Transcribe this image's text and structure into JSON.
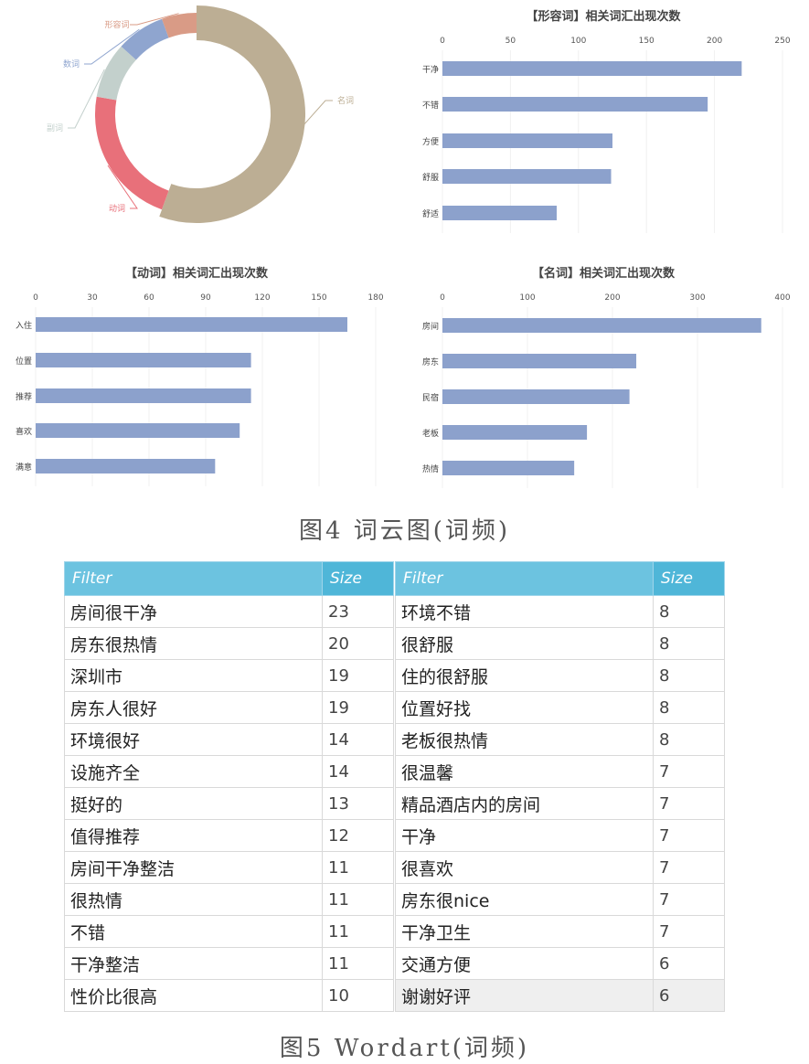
{
  "chart_data": [
    {
      "type": "pie",
      "donut": true,
      "slices": [
        {
          "label": "名词",
          "value": 50,
          "color": "#bcae94"
        },
        {
          "label": "动词",
          "value": 20,
          "color": "#e8707a"
        },
        {
          "label": "副词",
          "value": 8,
          "color": "#c3d0cc"
        },
        {
          "label": "数词",
          "value": 7,
          "color": "#8fa5cf"
        },
        {
          "label": "形容词",
          "value": 5,
          "color": "#d99b86"
        }
      ]
    },
    {
      "type": "bar",
      "orientation": "horizontal",
      "title": "【形容词】相关词汇出现次数",
      "categories": [
        "干净",
        "不错",
        "方便",
        "舒服",
        "舒适"
      ],
      "values": [
        220,
        195,
        125,
        124,
        84
      ],
      "xticks": [
        0,
        50,
        100,
        150,
        200,
        250
      ],
      "xlim": [
        0,
        250
      ],
      "color": "#8ca1cc"
    },
    {
      "type": "bar",
      "orientation": "horizontal",
      "title": "【动词】相关词汇出现次数",
      "categories": [
        "入住",
        "位置",
        "推荐",
        "喜欢",
        "满意"
      ],
      "values": [
        165,
        114,
        114,
        108,
        95
      ],
      "xticks": [
        0,
        30,
        60,
        90,
        120,
        150,
        180
      ],
      "xlim": [
        0,
        180
      ],
      "color": "#8ca1cc"
    },
    {
      "type": "bar",
      "orientation": "horizontal",
      "title": "【名词】相关词汇出现次数",
      "categories": [
        "房间",
        "房东",
        "民宿",
        "老板",
        "热情"
      ],
      "values": [
        375,
        228,
        220,
        170,
        155
      ],
      "xticks": [
        0,
        100,
        200,
        300,
        400
      ],
      "xlim": [
        0,
        400
      ],
      "color": "#8ca1cc"
    }
  ],
  "captions": {
    "fig4": "图4 词云图(词频)",
    "fig5": "图5 Wordart(词频)"
  },
  "table_left": {
    "headers": [
      "Filter",
      "Size"
    ],
    "rows": [
      [
        "房间很干净",
        "23"
      ],
      [
        "房东很热情",
        "20"
      ],
      [
        "深圳市",
        "19"
      ],
      [
        "房东人很好",
        "19"
      ],
      [
        "环境很好",
        "14"
      ],
      [
        "设施齐全",
        "14"
      ],
      [
        "挺好的",
        "13"
      ],
      [
        "值得推荐",
        "12"
      ],
      [
        "房间干净整洁",
        "11"
      ],
      [
        "很热情",
        "11"
      ],
      [
        "不错",
        "11"
      ],
      [
        "干净整洁",
        "11"
      ],
      [
        "性价比很高",
        "10"
      ]
    ]
  },
  "table_right": {
    "headers": [
      "Filter",
      "Size"
    ],
    "rows": [
      [
        "环境不错",
        "8"
      ],
      [
        "很舒服",
        "8"
      ],
      [
        "住的很舒服",
        "8"
      ],
      [
        "位置好找",
        "8"
      ],
      [
        "老板很热情",
        "8"
      ],
      [
        "很温馨",
        "7"
      ],
      [
        "精品酒店内的房间",
        "7"
      ],
      [
        "干净",
        "7"
      ],
      [
        "很喜欢",
        "7"
      ],
      [
        "房东很nice",
        "7"
      ],
      [
        "干净卫生",
        "7"
      ],
      [
        "交通方便",
        "6"
      ],
      [
        "谢谢好评",
        "6"
      ]
    ]
  }
}
